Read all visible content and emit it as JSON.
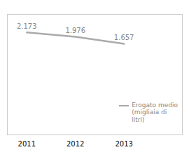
{
  "chart_data": {
    "type": "line",
    "x": [
      2011,
      2012,
      2013
    ],
    "series": [
      {
        "name": "Erogato medio\n(migliaia di\nlitri)",
        "color": "#aaaaaa",
        "values": [
          2.173,
          1.976,
          1.657
        ]
      }
    ],
    "xlim": [
      2010.6,
      2014.2
    ],
    "xticks": [
      2011,
      2012,
      2013
    ],
    "ylim": [
      -2.5,
      3.0
    ],
    "data_labels": true,
    "tick_labels": "x",
    "grid": false,
    "legend": "lower right"
  }
}
